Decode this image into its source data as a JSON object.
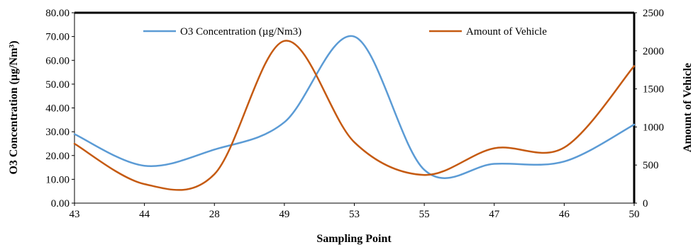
{
  "chart_data": {
    "type": "line",
    "categories": [
      "43",
      "44",
      "28",
      "49",
      "53",
      "55",
      "47",
      "46",
      "50"
    ],
    "xlabel": "Sampling Point",
    "ylabel_left": "O3 Concentration (µg/Nm³)",
    "ylabel_right": "Amount of Vehicle",
    "ylim_left": [
      0,
      80
    ],
    "ylim_right": [
      0,
      2500
    ],
    "yticks_left": [
      "0.00",
      "10.00",
      "20.00",
      "30.00",
      "40.00",
      "50.00",
      "60.00",
      "70.00",
      "80.00"
    ],
    "yticks_right": [
      "0",
      "500",
      "1000",
      "1500",
      "2000",
      "2500"
    ],
    "grid": false,
    "legend_placement": "top",
    "series": [
      {
        "name": "O3 Concentration (µg/Nm3)",
        "axis": "left",
        "color": "#5b9bd5",
        "values": [
          29,
          15.7,
          22.5,
          34,
          70,
          14,
          16.5,
          17.5,
          33
        ]
      },
      {
        "name": "Amount of Vehicle",
        "axis": "right",
        "color": "#c55a11",
        "values": [
          780,
          250,
          380,
          2130,
          800,
          370,
          720,
          730,
          1800
        ]
      }
    ]
  }
}
